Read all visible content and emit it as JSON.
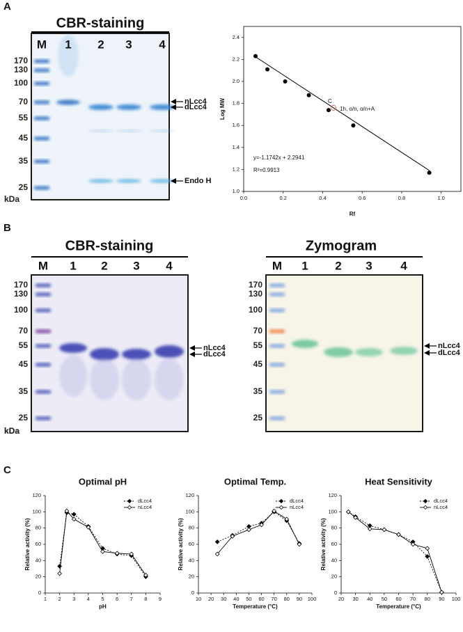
{
  "panel_labels": [
    "A",
    "B",
    "C"
  ],
  "gels": [
    {
      "title": "CBR-staining",
      "lanes": [
        "M",
        "1",
        "2",
        "3",
        "4"
      ],
      "markers": [
        "170",
        "130",
        "100",
        "70",
        "55",
        "45",
        "35",
        "25"
      ],
      "unit": "kDa",
      "arrows": [
        "nLcc4",
        "dLcc4",
        "Endo H"
      ]
    },
    {
      "title": "CBR-staining",
      "lanes": [
        "M",
        "1",
        "2",
        "3",
        "4"
      ],
      "markers": [
        "170",
        "130",
        "100",
        "70",
        "55",
        "45",
        "35",
        "25"
      ],
      "unit": "kDa",
      "arrows": [
        "nLcc4",
        "dLcc4"
      ]
    },
    {
      "title": "Zymogram",
      "lanes": [
        "M",
        "1",
        "2",
        "3",
        "4"
      ],
      "markers": [
        "170",
        "130",
        "100",
        "70",
        "55",
        "45",
        "35",
        "25"
      ],
      "unit": "kDa",
      "arrows": [
        "nLcc4",
        "dLcc4"
      ]
    }
  ],
  "chart_data": [
    {
      "type": "scatter",
      "xlabel": "Rf",
      "ylabel": "Log MW",
      "x": [
        0.06,
        0.12,
        0.21,
        0.33,
        0.43,
        0.555,
        0.94
      ],
      "values": [
        2.23,
        2.11,
        2.0,
        1.875,
        1.74,
        1.6,
        1.17
      ],
      "color": "#000000",
      "highlight": {
        "x": 0.455,
        "value": 1.76,
        "color": "#e07070",
        "label": "C",
        "note": "1h, o/n, o/n+A"
      },
      "fit": {
        "slope": -1.1742,
        "intercept": 2.2941,
        "label": "y=-1.1742x + 2.2941",
        "r2_label": "R²=0.9913"
      },
      "xlim": [
        0,
        1.1
      ],
      "ylim": [
        1.0,
        2.5
      ],
      "xticks": [
        {
          "value": 0,
          "label": "0.0"
        },
        0.2,
        0.4,
        0.6,
        0.8,
        {
          "value": 1,
          "label": "1.0"
        }
      ],
      "yticks": [
        {
          "value": 1,
          "label": "1.0"
        },
        1.2,
        1.4,
        1.6,
        1.8,
        {
          "value": 2,
          "label": "2.0"
        },
        2.2,
        2.4
      ]
    },
    {
      "type": "line",
      "title": "Optimal pH",
      "xlabel": "pH",
      "ylabel": "Relative activity (%)",
      "x": [
        2,
        2.5,
        3,
        4,
        5,
        6,
        7,
        8
      ],
      "series": [
        {
          "name": "dLcc4",
          "color": "#000000",
          "dash": true,
          "marker": "filled",
          "values": [
            33,
            99,
            97,
            82,
            55,
            48,
            46,
            20
          ]
        },
        {
          "name": "nLcc4",
          "color": "#000000",
          "dash": false,
          "marker": "open",
          "values": [
            24,
            101,
            91,
            81,
            51,
            49,
            48,
            22
          ]
        }
      ],
      "xlim": [
        1,
        9
      ],
      "ylim": [
        0,
        120
      ],
      "xticks": [
        1,
        2,
        3,
        4,
        5,
        6,
        7,
        8,
        9
      ],
      "yticks": [
        0,
        20,
        40,
        60,
        80,
        100,
        120
      ],
      "legend": "upper right"
    },
    {
      "type": "line",
      "title": "Optimal Temp.",
      "xlabel": "Temperature (°C)",
      "ylabel": "Relative activity (%)",
      "x": [
        25,
        37,
        50,
        60,
        70,
        80,
        90
      ],
      "series": [
        {
          "name": "dLcc4",
          "color": "#000000",
          "dash": true,
          "marker": "filled",
          "values": [
            63,
            71,
            82,
            86,
            100,
            89,
            61
          ]
        },
        {
          "name": "nLcc4",
          "color": "#000000",
          "dash": false,
          "marker": "open",
          "values": [
            48,
            70,
            78,
            84,
            101,
            91,
            60
          ]
        }
      ],
      "xlim": [
        10,
        100
      ],
      "ylim": [
        0,
        120
      ],
      "xticks": [
        10,
        20,
        30,
        40,
        50,
        60,
        70,
        80,
        90,
        100
      ],
      "yticks": [
        0,
        20,
        40,
        60,
        80,
        100,
        120
      ],
      "legend": "upper right"
    },
    {
      "type": "line",
      "title": "Heat Sensitivity",
      "xlabel": "Temperature (°C)",
      "ylabel": "Relative activity (%)",
      "x": [
        25,
        30,
        40,
        50,
        60,
        70,
        80,
        90
      ],
      "series": [
        {
          "name": "dLcc4",
          "color": "#000000",
          "dash": true,
          "marker": "filled",
          "values": [
            100,
            94,
            83,
            78,
            72,
            63,
            45,
            1
          ]
        },
        {
          "name": "nLcc4",
          "color": "#000000",
          "dash": false,
          "marker": "open",
          "values": [
            100,
            93,
            79,
            78,
            72,
            60,
            55,
            1
          ]
        }
      ],
      "xlim": [
        20,
        100
      ],
      "ylim": [
        0,
        120
      ],
      "xticks": [
        20,
        30,
        40,
        50,
        60,
        70,
        80,
        90,
        100
      ],
      "yticks": [
        0,
        20,
        40,
        60,
        80,
        100,
        120
      ],
      "legend": "upper right"
    }
  ]
}
